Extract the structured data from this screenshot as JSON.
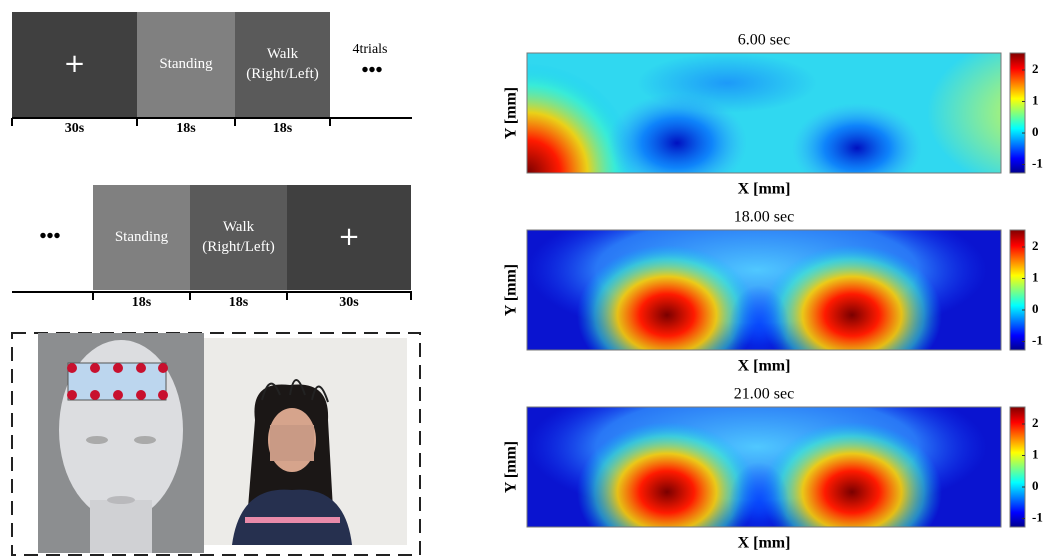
{
  "protocol": {
    "top": {
      "blocks": [
        {
          "label": [
            "+"
          ],
          "duration": "30s"
        },
        {
          "label": [
            "Standing"
          ],
          "duration": "18s"
        },
        {
          "label": [
            "Walk",
            "(Right/Left)"
          ],
          "duration": "18s"
        }
      ],
      "repeat": "4trials",
      "ellipsis": "•••"
    },
    "bottom": {
      "ellipsis": "•••",
      "blocks": [
        {
          "label": [
            "Standing"
          ],
          "duration": "18s"
        },
        {
          "label": [
            "Walk",
            "(Right/Left)"
          ],
          "duration": "18s"
        },
        {
          "label": [
            "+"
          ],
          "duration": "30s"
        }
      ]
    }
  },
  "heatmaps": [
    {
      "title": "6.00 sec",
      "ylabel": "Y [mm]",
      "xlabel": "X [mm]",
      "colorbar": [
        2,
        1,
        0,
        -1
      ]
    },
    {
      "title": "18.00 sec",
      "ylabel": "Y [mm]",
      "xlabel": "X [mm]",
      "colorbar": [
        2,
        1,
        0,
        -1
      ]
    },
    {
      "title": "21.00 sec",
      "ylabel": "Y [mm]",
      "xlabel": "X [mm]",
      "colorbar": [
        2,
        1,
        0,
        -1
      ]
    }
  ]
}
